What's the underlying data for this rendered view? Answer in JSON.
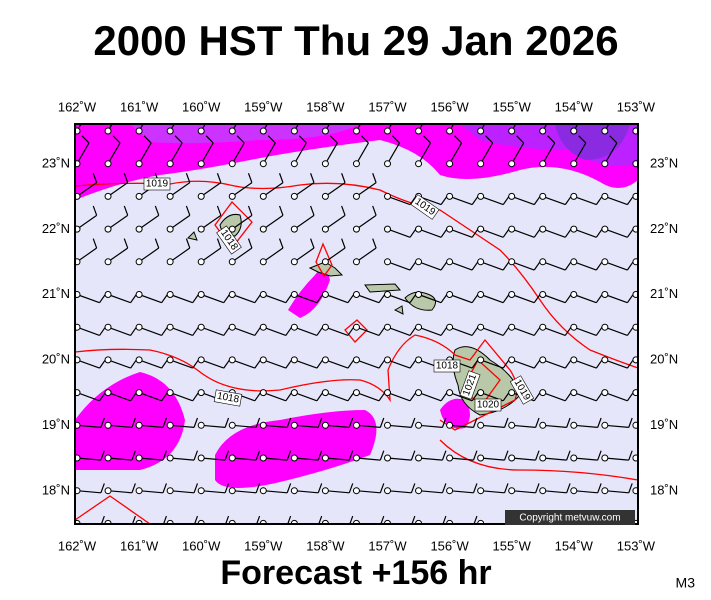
{
  "header": {
    "title": "2000 HST Thu 29 Jan 2026"
  },
  "map": {
    "longitude_labels": [
      "162˚W",
      "161˚W",
      "160˚W",
      "159˚W",
      "158˚W",
      "157˚W",
      "156˚W",
      "155˚W",
      "154˚W",
      "153˚W"
    ],
    "latitude_labels": [
      "23˚N",
      "22˚N",
      "21˚N",
      "20˚N",
      "19˚N",
      "18˚N"
    ],
    "isobar_labels": [
      "1019",
      "1019",
      "1018",
      "1018",
      "1021",
      "1020",
      "1019",
      "1018"
    ],
    "copyright": "Copyright metvuw.com"
  },
  "footer": {
    "forecast": "Forecast +156 hr",
    "model": "M3"
  }
}
